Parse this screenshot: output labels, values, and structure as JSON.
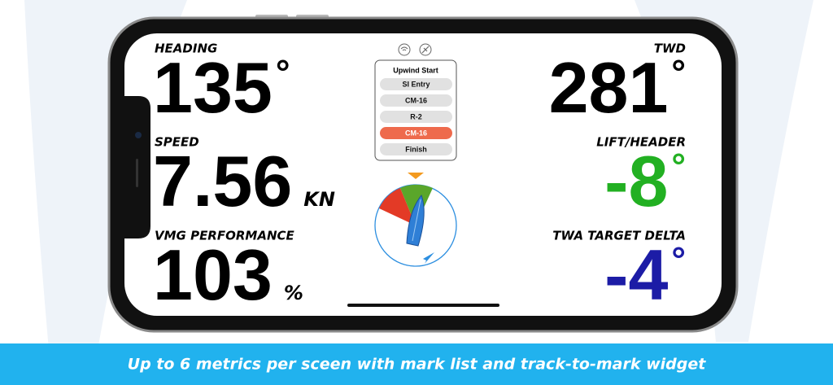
{
  "metrics": [
    {
      "label": "HEADING",
      "value": "135",
      "unit": "°",
      "side": "left",
      "color": "#000000"
    },
    {
      "label": "SPEED",
      "value": "7.56",
      "unit": "KN",
      "side": "left",
      "color": "#000000"
    },
    {
      "label": "VMG PERFORMANCE",
      "value": "103",
      "unit": "%",
      "side": "left",
      "color": "#000000"
    },
    {
      "label": "TWD",
      "value": "281",
      "unit": "°",
      "side": "right",
      "color": "#000000"
    },
    {
      "label": "LIFT/HEADER",
      "value": "-8",
      "unit": "°",
      "side": "right",
      "color": "#22b022"
    },
    {
      "label": "TWA TARGET DELTA",
      "value": "-4",
      "unit": "°",
      "side": "right",
      "color": "#1c1ca6"
    }
  ],
  "mark_list": {
    "title": "Upwind Start",
    "items": [
      "SI Entry",
      "CM-16",
      "R-2",
      "CM-16",
      "Finish"
    ],
    "selected": 3
  },
  "caption": "Up to 6 metrics per sceen with mark list and track-to-mark widget"
}
